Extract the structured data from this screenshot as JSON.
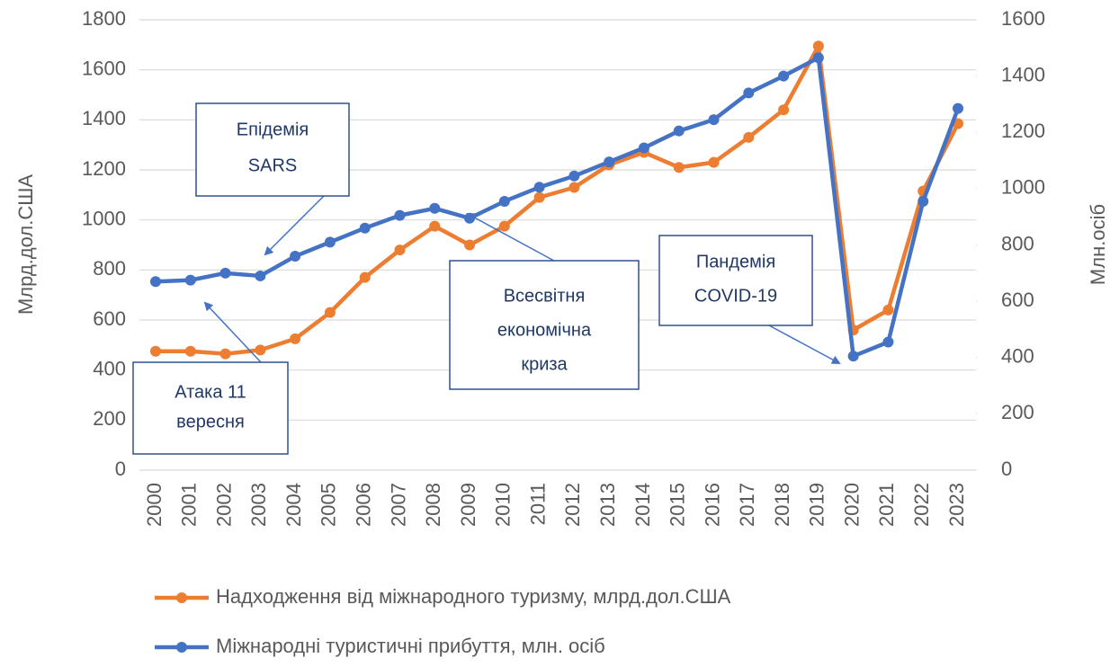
{
  "chart_data": {
    "type": "line",
    "y_label": "Млрд.дол.США",
    "y2_label": "Млн.осіб",
    "categories": [
      "2000",
      "2001",
      "2002",
      "2003",
      "2004",
      "2005",
      "2006",
      "2007",
      "2008",
      "2009",
      "2010",
      "2011",
      "2012",
      "2013",
      "2014",
      "2015",
      "2016",
      "2017",
      "2018",
      "2019",
      "2020",
      "2021",
      "2022",
      "2023"
    ],
    "series": [
      {
        "name": "Надходження від міжнародного туризму, млрд.дол.США",
        "color": "#ed7d31",
        "values": [
          475,
          475,
          465,
          480,
          525,
          630,
          770,
          880,
          975,
          900,
          975,
          1090,
          1130,
          1220,
          1270,
          1210,
          1230,
          1330,
          1440,
          1695,
          560,
          640,
          1115,
          1385
        ]
      },
      {
        "name": "Міжнародні туристичні прибуття, млн. осіб",
        "color": "#4472c4",
        "axis": "y2",
        "values": [
          670,
          675,
          700,
          690,
          760,
          810,
          860,
          905,
          930,
          895,
          955,
          1005,
          1045,
          1095,
          1145,
          1205,
          1245,
          1340,
          1400,
          1465,
          405,
          455,
          955,
          1285
        ]
      }
    ],
    "ylim": [
      0,
      1800
    ],
    "yticks": [
      0,
      200,
      400,
      600,
      800,
      1000,
      1200,
      1400,
      1600,
      1800
    ],
    "y2lim": [
      0,
      1600
    ],
    "y2ticks": [
      0,
      200,
      400,
      600,
      800,
      1000,
      1200,
      1400,
      1600
    ],
    "grid": true,
    "legend": "bottom",
    "annotations": [
      {
        "lines": [
          "Епідемія",
          "SARS"
        ]
      },
      {
        "lines": [
          "Атака 11",
          "вересня"
        ]
      },
      {
        "lines": [
          "Всесвітня",
          "економічна",
          "криза"
        ]
      },
      {
        "lines": [
          "Пандемія",
          "COVID-19"
        ]
      }
    ]
  }
}
